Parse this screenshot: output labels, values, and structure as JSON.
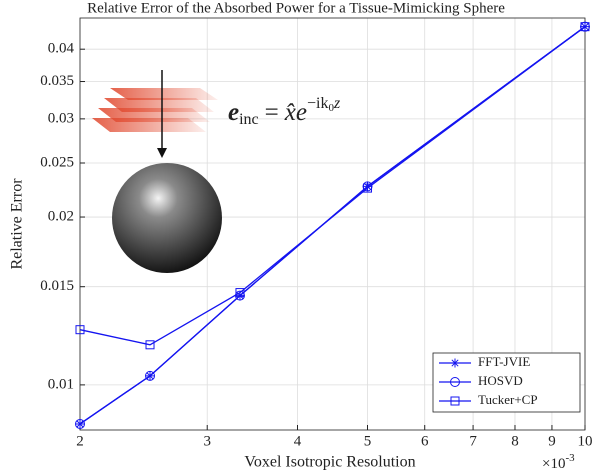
{
  "chart_data": {
    "type": "line",
    "title": "Relative Error of the Absorbed Power for a Tissue-Mimicking Sphere",
    "xlabel": "Voxel Isotropic Resolution",
    "ylabel": "Relative Error",
    "x_multiplier": {
      "base": "×10",
      "exponent": "-3"
    },
    "annotation": {
      "vector": "e",
      "vector_sub": "inc",
      "equals": "=",
      "rhs": "x̂e",
      "exp": "−ik",
      "exp_sub": "0",
      "exp_tail": "z"
    },
    "x": [
      0.002,
      0.0025,
      0.00333,
      0.005,
      0.01
    ],
    "series": [
      {
        "name": "FFT-JVIE",
        "color": "#1414f0",
        "marker": "asterisk",
        "values": [
          0.00851,
          0.01038,
          0.01446,
          0.0227,
          0.0439
        ]
      },
      {
        "name": "HOSVD",
        "color": "#1414f0",
        "marker": "circle",
        "values": [
          0.00851,
          0.01038,
          0.01446,
          0.0227,
          0.0439
        ]
      },
      {
        "name": "Tucker+CP",
        "color": "#1414f0",
        "marker": "square",
        "values": [
          0.01256,
          0.0118,
          0.01464,
          0.02254,
          0.0439
        ]
      }
    ],
    "xscale": "log",
    "yscale": "log",
    "xlim": [
      0.002,
      0.01
    ],
    "ylim": [
      0.0083,
      0.0455
    ],
    "xticks": [
      {
        "value": 0.002,
        "label": "2"
      },
      {
        "value": 0.003,
        "label": "3"
      },
      {
        "value": 0.004,
        "label": "4"
      },
      {
        "value": 0.005,
        "label": "5"
      },
      {
        "value": 0.006,
        "label": "6"
      },
      {
        "value": 0.007,
        "label": "7"
      },
      {
        "value": 0.008,
        "label": "8"
      },
      {
        "value": 0.009,
        "label": "9"
      },
      {
        "value": 0.01,
        "label": "10"
      }
    ],
    "yticks": [
      0.01,
      0.015,
      0.02,
      0.025,
      0.03,
      0.035,
      0.04
    ],
    "grid": true,
    "legend": "lower right"
  }
}
